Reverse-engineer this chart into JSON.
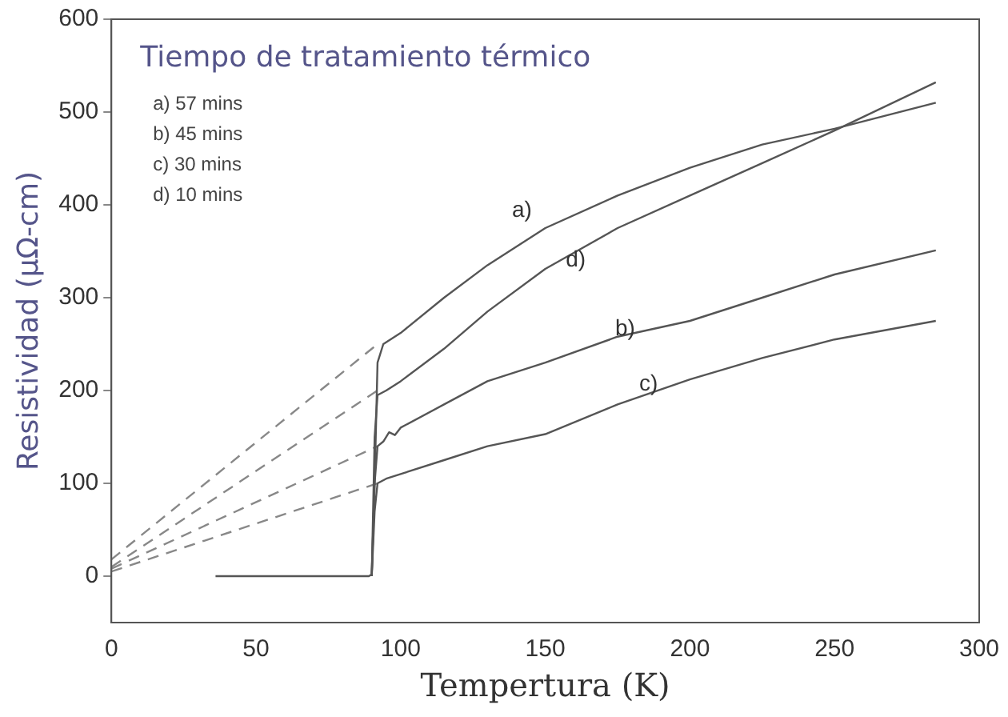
{
  "chart_data": {
    "type": "line",
    "xlabel": "Tempertura (K)",
    "ylabel": "Resistividad (μΩ-cm)",
    "xlim": [
      0,
      300
    ],
    "xticks": [
      0,
      50,
      100,
      150,
      200,
      250,
      300
    ],
    "ylim": [
      -50,
      600
    ],
    "yticks": [
      0,
      100,
      200,
      300,
      400,
      500,
      600
    ],
    "grid": false,
    "legend": false,
    "marker": "none",
    "annotations": [
      "Tiempo de tratamiento térmico",
      "a) 57 mins",
      "b) 45 mins",
      "c) 30 mins",
      "d) 10 mins",
      "a)",
      "d)",
      "b)",
      "c)"
    ],
    "series": [
      {
        "color": "#555555",
        "line_style": "solid",
        "x": [
          36,
          89,
          90,
          91,
          92,
          94,
          100,
          115,
          130,
          150,
          175,
          200,
          225,
          250,
          285
        ],
        "values": [
          0,
          0,
          2,
          100,
          230,
          250,
          262,
          300,
          335,
          375,
          410,
          440,
          465,
          482,
          510
        ]
      },
      {
        "color": "#555555",
        "line_style": "solid",
        "x": [
          90,
          91,
          92,
          95,
          100,
          115,
          130,
          150,
          175,
          200,
          225,
          250,
          285
        ],
        "values": [
          0,
          150,
          195,
          200,
          210,
          245,
          285,
          331,
          375,
          410,
          445,
          480,
          532
        ]
      },
      {
        "color": "#555555",
        "line_style": "solid",
        "x": [
          90,
          91,
          92,
          94,
          96,
          98,
          100,
          115,
          130,
          150,
          175,
          200,
          225,
          250,
          285
        ],
        "values": [
          0,
          100,
          140,
          145,
          155,
          152,
          160,
          185,
          210,
          230,
          258,
          275,
          300,
          325,
          351
        ]
      },
      {
        "color": "#555555",
        "line_style": "solid",
        "x": [
          90,
          91,
          92,
          95,
          100,
          115,
          130,
          150,
          175,
          200,
          225,
          250,
          285
        ],
        "values": [
          0,
          70,
          100,
          105,
          110,
          125,
          140,
          153,
          185,
          212,
          235,
          255,
          275
        ]
      },
      {
        "color": "#888888",
        "line_style": "dashed",
        "x": [
          0,
          92
        ],
        "values": [
          18,
          250
        ]
      },
      {
        "color": "#888888",
        "line_style": "dashed",
        "x": [
          0,
          92
        ],
        "values": [
          10,
          200
        ]
      },
      {
        "color": "#888888",
        "line_style": "dashed",
        "x": [
          0,
          92
        ],
        "values": [
          8,
          140
        ]
      },
      {
        "color": "#888888",
        "line_style": "dashed",
        "x": [
          0,
          92
        ],
        "values": [
          5,
          100
        ]
      }
    ]
  }
}
